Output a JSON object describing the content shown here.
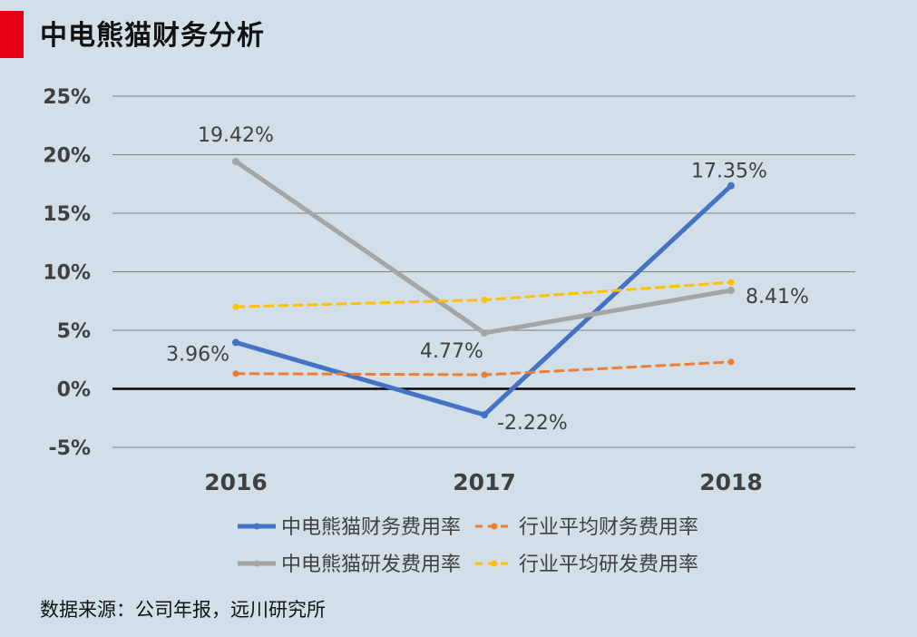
{
  "title": "中电熊猫财务分析",
  "source": "数据来源：公司年报，远川研究所",
  "colors": {
    "background": "#d2dfe8",
    "accent_bar": "#e60012",
    "series_blue": "#4472c4",
    "series_orange": "#ed7d31",
    "series_gray": "#a5a5a5",
    "series_yellow": "#ffc000",
    "grid": "#7f7f7f",
    "zero_line": "#000000",
    "text": "#404040"
  },
  "chart_data": {
    "type": "line",
    "title": "中电熊猫财务分析",
    "categories": [
      "2016",
      "2017",
      "2018"
    ],
    "y_ticks": [
      "25%",
      "20%",
      "15%",
      "10%",
      "5%",
      "0%",
      "-5%"
    ],
    "ylim": [
      -5,
      25
    ],
    "unit": "%",
    "grid": true,
    "legend_position": "bottom",
    "series": [
      {
        "name": "中电熊猫财务费用率",
        "values": [
          3.96,
          -2.22,
          17.35
        ],
        "labels": [
          "3.96%",
          "-2.22%",
          "17.35%"
        ],
        "color": "#4472c4",
        "style": "solid"
      },
      {
        "name": "行业平均财务费用率",
        "values": [
          1.3,
          1.2,
          2.3
        ],
        "labels": [],
        "color": "#ed7d31",
        "style": "dashed"
      },
      {
        "name": "中电熊猫研发费用率",
        "values": [
          19.42,
          4.77,
          8.41
        ],
        "labels": [
          "19.42%",
          "4.77%",
          "8.41%"
        ],
        "color": "#a5a5a5",
        "style": "solid"
      },
      {
        "name": "行业平均研发费用率",
        "values": [
          7.0,
          7.6,
          9.1
        ],
        "labels": [],
        "color": "#ffc000",
        "style": "dashed"
      }
    ]
  }
}
